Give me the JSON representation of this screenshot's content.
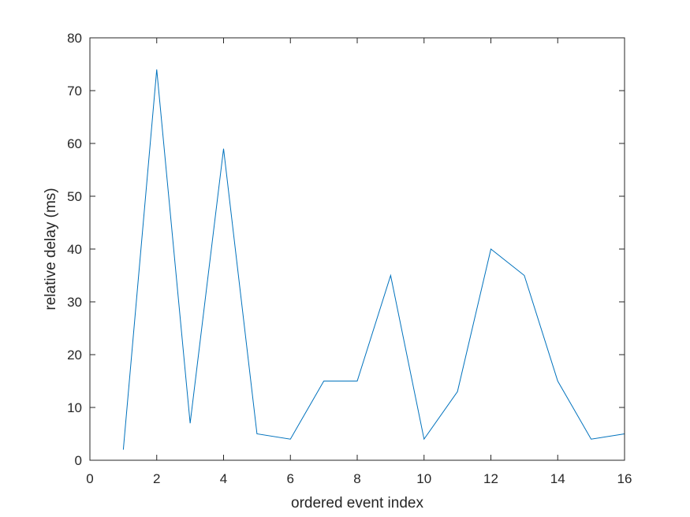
{
  "chart_data": {
    "type": "line",
    "title": "",
    "xlabel": "ordered event index",
    "ylabel": "relative delay (ms)",
    "xlim": [
      0,
      16
    ],
    "ylim": [
      0,
      80
    ],
    "xticks": [
      0,
      2,
      4,
      6,
      8,
      10,
      12,
      14,
      16
    ],
    "yticks": [
      0,
      10,
      20,
      30,
      40,
      50,
      60,
      70,
      80
    ],
    "grid": false,
    "legend": "none",
    "series": [
      {
        "color": "#0072BD",
        "x": [
          1,
          2,
          3,
          4,
          5,
          6,
          7,
          8,
          9,
          10,
          11,
          12,
          13,
          14,
          15,
          16
        ],
        "y": [
          2,
          74,
          7,
          59,
          5,
          4,
          15,
          15,
          35,
          4,
          13,
          40,
          35,
          15,
          4,
          5
        ]
      }
    ]
  }
}
